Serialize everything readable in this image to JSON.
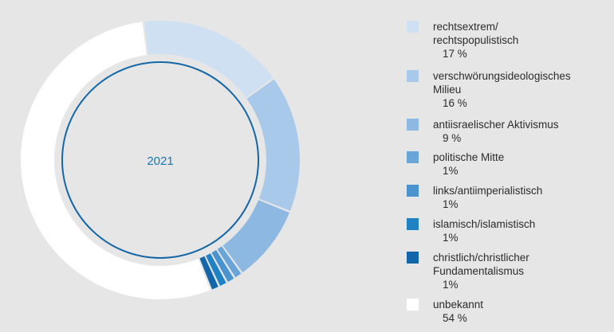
{
  "chart_data": {
    "type": "pie",
    "style": "donut",
    "center_label": "2021",
    "center_label_color": "#1a74b0",
    "ring_line_color": "#1467a6",
    "slices": [
      {
        "label": "rechtsextrem/\nrechtspopulistisch",
        "value": 17,
        "display": "17 %",
        "color": "#cfe0f3"
      },
      {
        "label": "verschwörungsideologisches\nMilieu",
        "value": 16,
        "display": "16 %",
        "color": "#a8c9ea"
      },
      {
        "label": "antiisraelischer Aktivismus",
        "value": 9,
        "display": "9 %",
        "color": "#8cb8e2"
      },
      {
        "label": "politische Mitte",
        "value": 1,
        "display": "1%",
        "color": "#6aa5d9"
      },
      {
        "label": "links/antiimperialistisch",
        "value": 1,
        "display": "1%",
        "color": "#4a93cf"
      },
      {
        "label": "islamisch/islamistisch",
        "value": 1,
        "display": "1%",
        "color": "#1f82c2"
      },
      {
        "label": "christlich/christlicher\nFundamentalismus",
        "value": 1,
        "display": "1%",
        "color": "#1266a9"
      },
      {
        "label": "unbekannt",
        "value": 54,
        "display": "54 %",
        "color": "#ffffff"
      }
    ]
  }
}
